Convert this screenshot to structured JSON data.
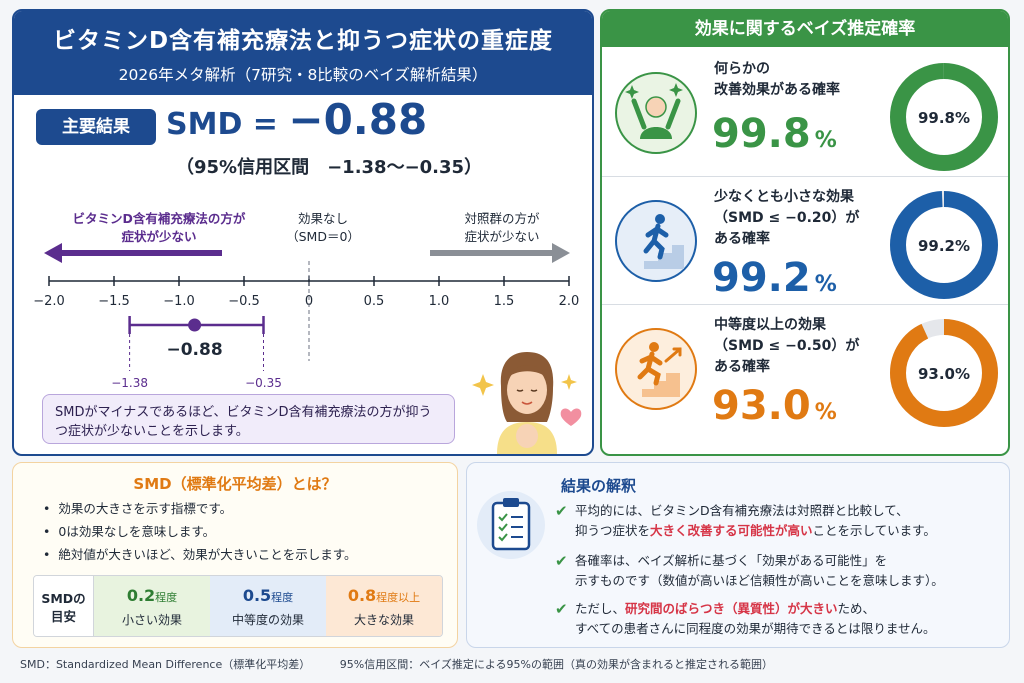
{
  "header": {
    "title": "ビタミンD含有補充療法と抑うつ症状の重症度",
    "subtitle": "2026年メタ解析（7研究・8比較のベイズ解析結果）"
  },
  "key_result": {
    "badge": "主要結果",
    "smd_label": "SMD = ",
    "smd_value": "−0.88",
    "ci_text": "（95%信用区間　−1.38〜−0.35）"
  },
  "forest_plot": {
    "left_direction": [
      "ビタミンD含有補充療法の方が",
      "症状が少ない"
    ],
    "center_label": [
      "効果なし",
      "（SMD＝0）"
    ],
    "right_direction": [
      "対照群の方が",
      "症状が少ない"
    ],
    "axis_ticks": [
      -2.0,
      -1.5,
      -1.0,
      -0.5,
      0,
      0.5,
      1.0,
      1.5,
      2.0
    ],
    "axis_tick_labels": [
      "−2.0",
      "−1.5",
      "−1.0",
      "−0.5",
      "0",
      "0.5",
      "1.0",
      "1.5",
      "2.0"
    ],
    "axis_range": [
      -2.0,
      2.0
    ],
    "estimate": -0.88,
    "estimate_label": "−0.88",
    "ci_lower": -1.38,
    "ci_upper": -0.35,
    "ci_lower_label": "−1.38",
    "ci_upper_label": "−0.35",
    "colors": {
      "vitamin": "#5b2d8e",
      "control": "#8a8f96"
    }
  },
  "note": "SMDがマイナスであるほど、ビタミンD含有補充療法の方が抑うつ症状が少ないことを示します。",
  "probabilities": {
    "header": "効果に関するベイズ推定確率",
    "items": [
      {
        "label": "何らかの\n改善効果がある確率",
        "value": "99.8",
        "unit": "%",
        "donut_label": "99.8%",
        "fraction": 0.998,
        "color": "#3a9446",
        "icon": "cheering-person-icon"
      },
      {
        "label": "少なくとも小さな効果\n（SMD ≤ −0.20）が\nある確率",
        "value": "99.2",
        "unit": "%",
        "donut_label": "99.2%",
        "fraction": 0.992,
        "color": "#1d5fa8",
        "icon": "walking-stairs-icon"
      },
      {
        "label": "中等度以上の効果\n（SMD ≤ −0.50）が\nある確率",
        "value": "93.0",
        "unit": "%",
        "donut_label": "93.0%",
        "fraction": 0.93,
        "color": "#e07a13",
        "icon": "running-stairs-icon"
      }
    ]
  },
  "smd_explain": {
    "title": "SMD（標準化平均差）とは？",
    "bullets": [
      "効果の大きさを示す指標です。",
      "0は効果なしを意味します。",
      "絶対値が大きいほど、効果が大きいことを示します。"
    ],
    "guide_head": [
      "SMDの",
      "目安"
    ],
    "guide": [
      {
        "value": "0.2",
        "unit": "程度",
        "desc": "小さい効果"
      },
      {
        "value": "0.5",
        "unit": "程度",
        "desc": "中等度の効果"
      },
      {
        "value": "0.8",
        "unit": "程度以上",
        "desc": "大きな効果"
      }
    ]
  },
  "interpretation": {
    "title": "結果の解釈",
    "items": [
      {
        "line1": "平均的には、ビタミンD含有補充療法は対照群と比較して、",
        "line2_pre": "抑うつ症状を",
        "line2_hl": "大きく改善する可能性が高い",
        "line2_post": "ことを示しています。"
      },
      {
        "line1": "各確率は、ベイズ解析に基づく「効果がある可能性」を",
        "line2_pre": "示すものです（数値が高いほど信頼性が高いことを意味します）。",
        "line2_hl": "",
        "line2_post": ""
      },
      {
        "line1_pre": "ただし、",
        "line1_hl": "研究間のばらつき（異質性）が大きい",
        "line1_post": "ため、",
        "line2_pre": "すべての患者さんに同程度の効果が期待できるとは限りません。",
        "line2_hl": "",
        "line2_post": ""
      }
    ]
  },
  "footer": {
    "smd_def": "SMD：Standardized Mean Difference（標準化平均差）",
    "ci_def": "95%信用区間：ベイズ推定による95%の範囲（真の効果が含まれると推定される範囲）"
  }
}
